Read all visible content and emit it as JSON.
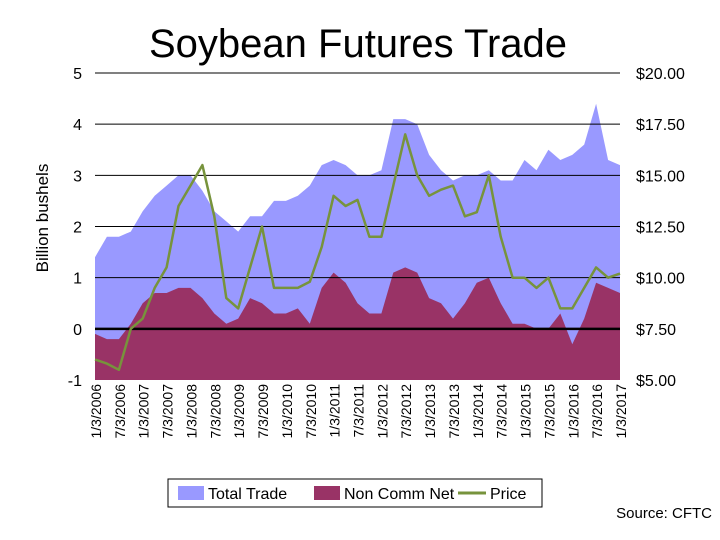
{
  "chart_data": {
    "type": "area",
    "title": "Soybean Futures Trade",
    "ylabel": "Billion bushels",
    "ylim": [
      -1,
      5
    ],
    "y_ticks": [
      "-1",
      "0",
      "1",
      "2",
      "3",
      "4",
      "5"
    ],
    "y2lim": [
      5,
      20
    ],
    "y2_ticks": [
      "$5.00",
      "$7.50",
      "$10.00",
      "$12.50",
      "$15.00",
      "$17.50",
      "$20.00"
    ],
    "x_ticks": [
      "1/3/2006",
      "7/3/2006",
      "1/3/2007",
      "7/3/2007",
      "1/3/2008",
      "7/3/2008",
      "1/3/2009",
      "7/3/2009",
      "1/3/2010",
      "7/3/2010",
      "1/3/2011",
      "7/3/2011",
      "1/3/2012",
      "7/3/2012",
      "1/3/2013",
      "7/3/2013",
      "1/3/2014",
      "7/3/2014",
      "1/3/2015",
      "7/3/2015",
      "1/3/2016",
      "7/3/2016",
      "1/3/2017"
    ],
    "x": [
      2006.0,
      2006.25,
      2006.5,
      2006.75,
      2007.0,
      2007.25,
      2007.5,
      2007.75,
      2008.0,
      2008.25,
      2008.5,
      2008.75,
      2009.0,
      2009.25,
      2009.5,
      2009.75,
      2010.0,
      2010.25,
      2010.5,
      2010.75,
      2011.0,
      2011.25,
      2011.5,
      2011.75,
      2012.0,
      2012.25,
      2012.5,
      2012.75,
      2013.0,
      2013.25,
      2013.5,
      2013.75,
      2014.0,
      2014.25,
      2014.5,
      2014.75,
      2015.0,
      2015.25,
      2015.5,
      2015.75,
      2016.0,
      2016.25,
      2016.5,
      2016.75,
      2017.0
    ],
    "series": [
      {
        "name": "Total Trade",
        "color": "#9999ff",
        "axis": "left",
        "values": [
          1.4,
          1.8,
          1.8,
          1.9,
          2.3,
          2.6,
          2.8,
          3.0,
          3.0,
          2.7,
          2.3,
          2.1,
          1.9,
          2.2,
          2.2,
          2.5,
          2.5,
          2.6,
          2.8,
          3.2,
          3.3,
          3.2,
          3.0,
          3.0,
          3.1,
          4.1,
          4.1,
          4.0,
          3.4,
          3.1,
          2.9,
          3.0,
          3.0,
          3.1,
          2.9,
          2.9,
          3.3,
          3.1,
          3.5,
          3.3,
          3.4,
          3.6,
          4.4,
          3.3,
          3.2
        ]
      },
      {
        "name": "Non Comm Net",
        "color": "#993366",
        "axis": "left",
        "values": [
          -0.1,
          -0.2,
          -0.2,
          0.1,
          0.5,
          0.7,
          0.7,
          0.8,
          0.8,
          0.6,
          0.3,
          0.1,
          0.2,
          0.6,
          0.5,
          0.3,
          0.3,
          0.4,
          0.1,
          0.8,
          1.1,
          0.9,
          0.5,
          0.3,
          0.3,
          1.1,
          1.2,
          1.1,
          0.6,
          0.5,
          0.2,
          0.5,
          0.9,
          1.0,
          0.5,
          0.1,
          0.1,
          0.0,
          0.0,
          0.3,
          -0.3,
          0.2,
          0.9,
          0.8,
          0.7
        ]
      },
      {
        "name": "Price",
        "color": "#77933c",
        "axis": "right",
        "values": [
          6.0,
          5.8,
          5.5,
          7.5,
          8.0,
          9.5,
          10.5,
          13.5,
          14.5,
          15.5,
          13.0,
          9.0,
          8.5,
          10.5,
          12.5,
          9.5,
          9.5,
          9.5,
          9.8,
          11.5,
          14.0,
          13.5,
          13.8,
          12.0,
          12.0,
          14.5,
          17.0,
          15.0,
          14.0,
          14.3,
          14.5,
          13.0,
          13.2,
          15.0,
          12.0,
          10.0,
          10.0,
          9.5,
          10.0,
          8.5,
          8.5,
          9.5,
          10.5,
          10.0,
          10.2
        ]
      }
    ],
    "legend": {
      "placement": "bottom-center",
      "entries": [
        "Total Trade",
        "Non Comm Net",
        "Price"
      ]
    },
    "grid": "horizontal",
    "source": "Source: CFTC"
  }
}
